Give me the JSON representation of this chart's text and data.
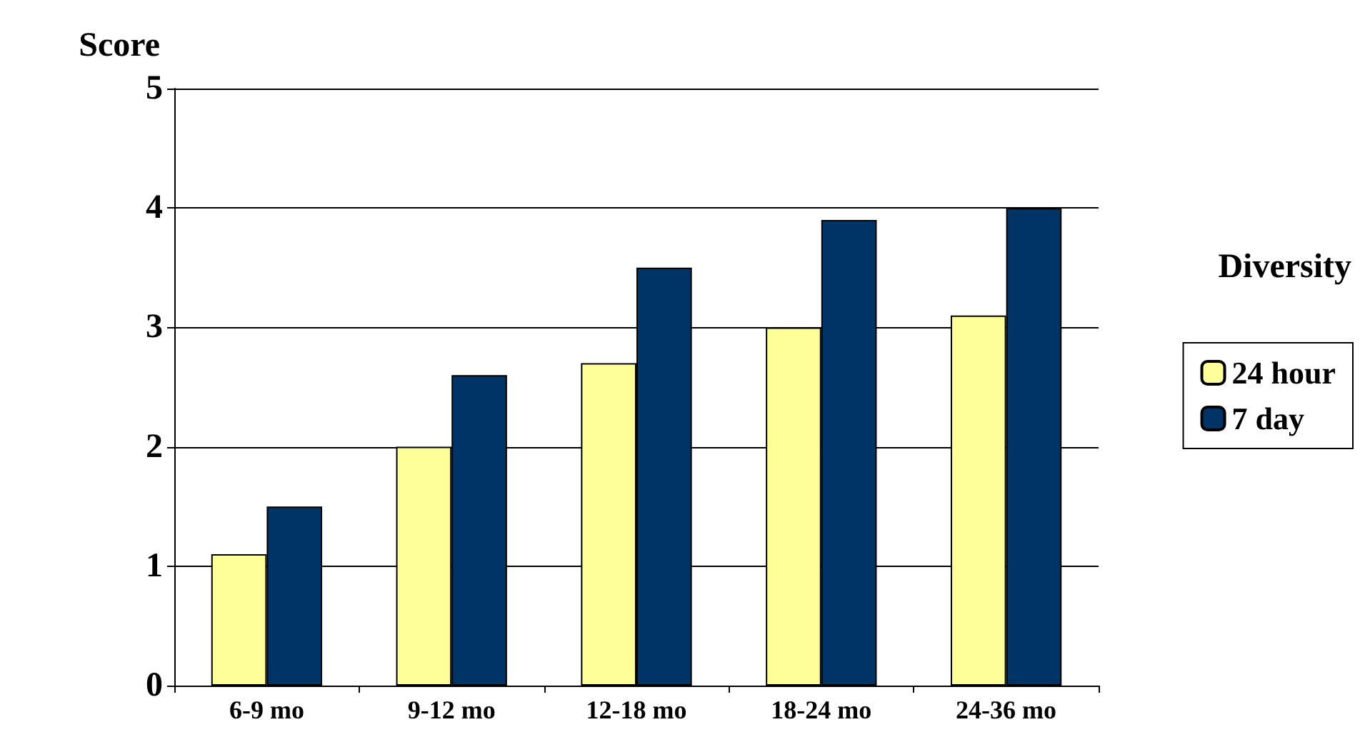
{
  "chart_data": {
    "type": "bar",
    "ylabel": "Score",
    "legend_title": "Diversity",
    "categories": [
      "6-9 mo",
      "9-12 mo",
      "12-18 mo",
      "18-24 mo",
      "24-36 mo"
    ],
    "series": [
      {
        "name": "24 hour",
        "color": "#ffff99",
        "values": [
          1.1,
          2.0,
          2.7,
          3.0,
          3.1
        ]
      },
      {
        "name": "7 day",
        "color": "#003366",
        "values": [
          1.5,
          2.6,
          3.5,
          3.9,
          4.0
        ]
      }
    ],
    "ylim": [
      0,
      5
    ],
    "yticks": [
      0,
      1,
      2,
      3,
      4,
      5
    ],
    "grid": "y",
    "legend": "right"
  }
}
